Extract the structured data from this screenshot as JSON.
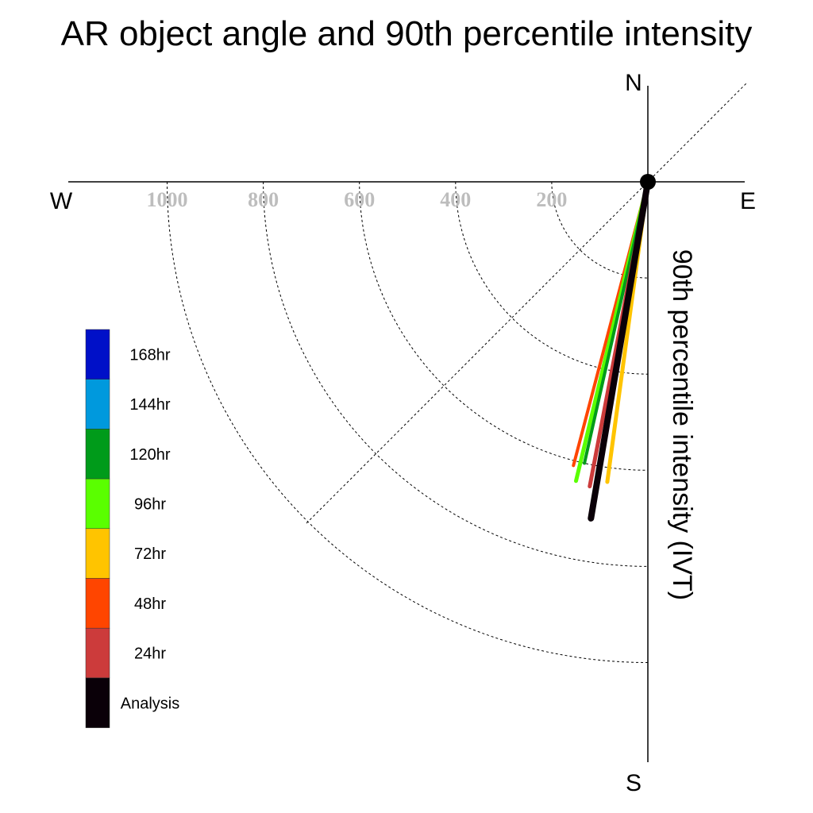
{
  "chart_data": {
    "type": "polar-vector",
    "title": "AR object angle and 90th percentile intensity",
    "ylabel": "90th percentile intensity (IVT)",
    "compass": {
      "north": "N",
      "south": "S",
      "east": "E",
      "west": "W"
    },
    "rings": [
      {
        "value": 200,
        "label": "200"
      },
      {
        "value": 400,
        "label": "400"
      },
      {
        "value": 600,
        "label": "600"
      },
      {
        "value": 800,
        "label": "800"
      },
      {
        "value": 1000,
        "label": "1000"
      }
    ],
    "rlim": [
      0,
      1200
    ],
    "sector": "south-west quadrant shown, diagonal reference at 45 degrees",
    "legend": [
      {
        "name": "168hr",
        "color": "#0010c8"
      },
      {
        "name": "144hr",
        "color": "#0099dd"
      },
      {
        "name": "120hr",
        "color": "#009b1a"
      },
      {
        "name": "96hr",
        "color": "#5aff00"
      },
      {
        "name": "72hr",
        "color": "#ffc400"
      },
      {
        "name": "48hr",
        "color": "#ff4500"
      },
      {
        "name": "24hr",
        "color": "#cc3b3b"
      },
      {
        "name": "Analysis",
        "color": "#0a0008"
      }
    ],
    "series": [
      {
        "name": "48hr",
        "color": "#ff4500",
        "bearing_deg": 194.7,
        "intensity": 610,
        "width": 4
      },
      {
        "name": "96hr",
        "color": "#5aff00",
        "bearing_deg": 193.5,
        "intensity": 640,
        "width": 5
      },
      {
        "name": "120hr",
        "color": "#009b1a",
        "bearing_deg": 192.7,
        "intensity": 600,
        "width": 4
      },
      {
        "name": "24hr",
        "color": "#cc3b3b",
        "bearing_deg": 190.8,
        "intensity": 645,
        "width": 5
      },
      {
        "name": "72hr",
        "color": "#ffc400",
        "bearing_deg": 187.7,
        "intensity": 630,
        "width": 5
      },
      {
        "name": "Analysis",
        "color": "#0a0008",
        "bearing_deg": 189.6,
        "intensity": 710,
        "width": 8
      }
    ]
  }
}
